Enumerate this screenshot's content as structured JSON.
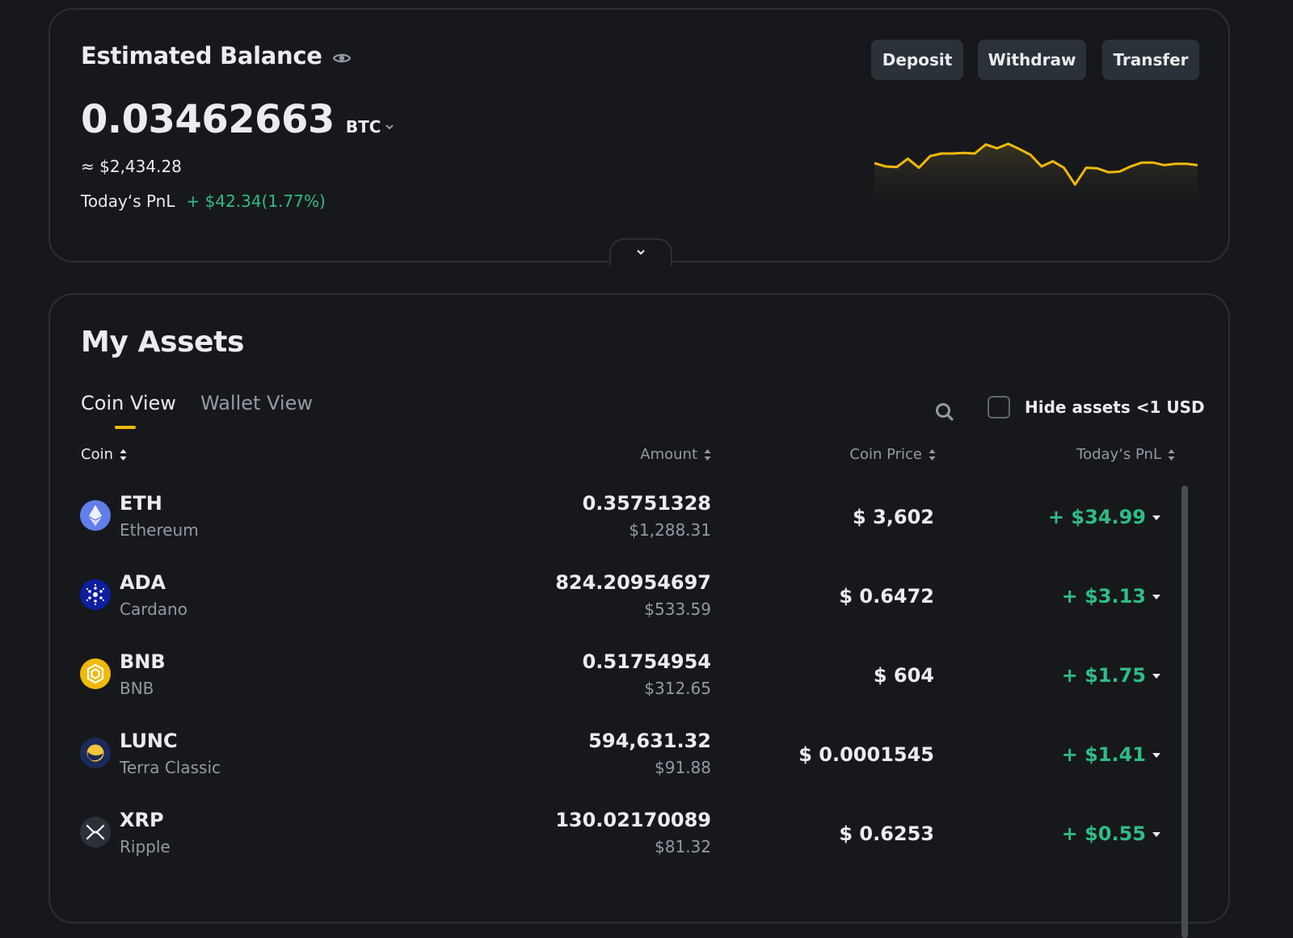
{
  "balance": {
    "title": "Estimated Balance",
    "amount": "0.03462663",
    "unit": "BTC",
    "usd_approx": "≈ $2,434.28",
    "pnl_label": "Today‘s PnL",
    "pnl_value": "+ $42.34(1.77%)",
    "buttons": {
      "deposit": "Deposit",
      "withdraw": "Withdraw",
      "transfer": "Transfer"
    },
    "sparkline": [
      0.45,
      0.4,
      0.39,
      0.52,
      0.38,
      0.56,
      0.6,
      0.6,
      0.61,
      0.6,
      0.74,
      0.68,
      0.75,
      0.67,
      0.58,
      0.4,
      0.48,
      0.38,
      0.12,
      0.38,
      0.37,
      0.31,
      0.32,
      0.4,
      0.46,
      0.46,
      0.42,
      0.44,
      0.44,
      0.42
    ]
  },
  "assets": {
    "title": "My Assets",
    "tabs": {
      "coin_view": "Coin View",
      "wallet_view": "Wallet View"
    },
    "hide_label": "Hide assets <1 USD",
    "headers": {
      "coin": "Coin",
      "amount": "Amount",
      "price": "Coin Price",
      "pnl": "Today‘s PnL"
    },
    "rows": [
      {
        "symbol": "ETH",
        "name": "Ethereum",
        "amount": "0.35751328",
        "amount_usd": "$1,288.31",
        "price": "$ 3,602",
        "pnl": "+ $34.99",
        "icon": "ethereum-icon"
      },
      {
        "symbol": "ADA",
        "name": "Cardano",
        "amount": "824.20954697",
        "amount_usd": "$533.59",
        "price": "$ 0.6472",
        "pnl": "+ $3.13",
        "icon": "cardano-icon"
      },
      {
        "symbol": "BNB",
        "name": "BNB",
        "amount": "0.51754954",
        "amount_usd": "$312.65",
        "price": "$ 604",
        "pnl": "+ $1.75",
        "icon": "bnb-icon"
      },
      {
        "symbol": "LUNC",
        "name": "Terra Classic",
        "amount": "594,631.32",
        "amount_usd": "$91.88",
        "price": "$ 0.0001545",
        "pnl": "+ $1.41",
        "icon": "terra-classic-icon"
      },
      {
        "symbol": "XRP",
        "name": "Ripple",
        "amount": "130.02170089",
        "amount_usd": "$81.32",
        "price": "$ 0.6253",
        "pnl": "+ $0.55",
        "icon": "xrp-icon"
      }
    ]
  },
  "colors": {
    "background": "#17181c",
    "accent": "#f0b90b",
    "positive": "#2ebd85",
    "muted": "#929aa5",
    "button": "#2b3139"
  }
}
